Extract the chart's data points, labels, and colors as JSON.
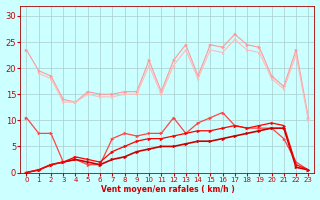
{
  "xlabel": "Vent moyen/en rafales ( km/h )",
  "xlim": [
    -0.5,
    23.5
  ],
  "ylim": [
    0,
    32
  ],
  "xticks": [
    0,
    1,
    2,
    3,
    4,
    5,
    6,
    7,
    8,
    9,
    10,
    11,
    12,
    13,
    14,
    15,
    16,
    17,
    18,
    19,
    20,
    21,
    22,
    23
  ],
  "yticks": [
    0,
    5,
    10,
    15,
    20,
    25,
    30
  ],
  "bg": "#ccffff",
  "grid_color": "#aacccc",
  "lines": [
    {
      "y": [
        23.5,
        19.5,
        18.5,
        14.0,
        13.5,
        15.5,
        15.0,
        15.0,
        15.5,
        15.5,
        21.5,
        15.5,
        21.5,
        24.5,
        18.5,
        24.5,
        24.0,
        26.5,
        24.5,
        24.0,
        18.5,
        16.5,
        23.5,
        10.5
      ],
      "color": "#ff9999",
      "lw": 0.8,
      "ms": 2.5
    },
    {
      "y": [
        null,
        19.0,
        18.0,
        13.5,
        13.5,
        15.0,
        14.5,
        14.5,
        15.0,
        15.0,
        20.5,
        15.0,
        20.5,
        23.5,
        18.0,
        23.5,
        23.0,
        25.5,
        23.5,
        23.0,
        18.0,
        16.0,
        22.5,
        10.0
      ],
      "color": "#ffbbbb",
      "lw": 0.8,
      "ms": 2.0
    },
    {
      "y": [
        10.5,
        7.5,
        7.5,
        2.0,
        2.5,
        1.5,
        1.5,
        6.5,
        7.5,
        7.0,
        7.5,
        7.5,
        10.5,
        7.5,
        9.5,
        10.5,
        11.5,
        9.0,
        8.5,
        8.5,
        8.5,
        6.5,
        2.0,
        0.5
      ],
      "color": "#ff4444",
      "lw": 0.9,
      "ms": 2.5
    },
    {
      "y": [
        0.0,
        0.5,
        1.5,
        2.0,
        2.5,
        2.0,
        1.5,
        2.5,
        3.0,
        4.0,
        4.5,
        5.0,
        5.0,
        5.5,
        6.0,
        6.0,
        6.5,
        7.0,
        7.5,
        8.0,
        8.5,
        8.5,
        1.0,
        0.5
      ],
      "color": "#cc0000",
      "lw": 1.2,
      "ms": 2.5
    },
    {
      "y": [
        0.0,
        0.5,
        1.5,
        2.0,
        3.0,
        2.5,
        2.0,
        4.0,
        5.0,
        6.0,
        6.5,
        6.5,
        7.0,
        7.5,
        8.0,
        8.0,
        8.5,
        9.0,
        8.5,
        9.0,
        9.5,
        9.0,
        1.5,
        0.5
      ],
      "color": "#ff0000",
      "lw": 0.9,
      "ms": 2.5
    }
  ]
}
